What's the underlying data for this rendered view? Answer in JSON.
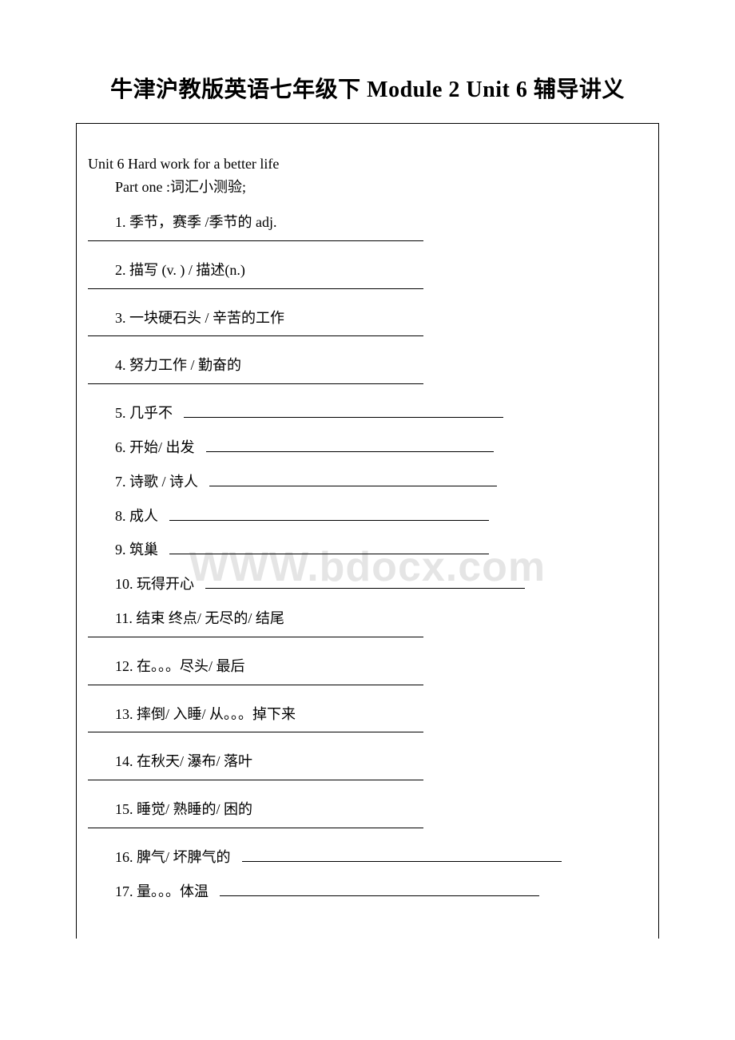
{
  "title": "牛津沪教版英语七年级下 Module 2 Unit 6 辅导讲义",
  "unit_line": "Unit 6 Hard work for a better life",
  "part_line": "Part one :词汇小测验;",
  "watermark": "WWW.bdocx.com",
  "items": [
    {
      "n": "1",
      "text": "季节，赛季 /季节的 adj.",
      "layout": "below"
    },
    {
      "n": "2",
      "text": "描写 (v. ) / 描述(n.)",
      "layout": "below"
    },
    {
      "n": "3",
      "text": "一块硬石头 / 辛苦的工作",
      "layout": "below"
    },
    {
      "n": "4",
      "text": "努力工作 / 勤奋的",
      "layout": "below"
    },
    {
      "n": "5",
      "text": "几乎不",
      "layout": "inline",
      "blank_width": 400
    },
    {
      "n": "6",
      "text": "开始/ 出发",
      "layout": "inline",
      "blank_width": 360
    },
    {
      "n": "7",
      "text": "诗歌 / 诗人",
      "layout": "inline",
      "blank_width": 360
    },
    {
      "n": "8",
      "text": "成人",
      "layout": "inline",
      "blank_width": 400
    },
    {
      "n": "9",
      "text": "筑巢",
      "layout": "inline",
      "blank_width": 400
    },
    {
      "n": "10",
      "text": "玩得开心",
      "layout": "inline",
      "blank_width": 400
    },
    {
      "n": "11",
      "text": "结束 终点/ 无尽的/ 结尾",
      "layout": "below"
    },
    {
      "n": "12",
      "text": "在。。。尽头/ 最后",
      "layout": "below"
    },
    {
      "n": "13",
      "text": "摔倒/ 入睡/ 从。。。掉下来",
      "layout": "below"
    },
    {
      "n": "14",
      "text": "在秋天/ 瀑布/ 落叶",
      "layout": "below"
    },
    {
      "n": "15",
      "text": "睡觉/ 熟睡的/ 困的",
      "layout": "below"
    },
    {
      "n": "16",
      "text": "脾气/ 坏脾气的",
      "layout": "inline",
      "blank_width": 400
    },
    {
      "n": "17",
      "text": "量。。。体温",
      "layout": "inline",
      "blank_width": 400
    }
  ]
}
